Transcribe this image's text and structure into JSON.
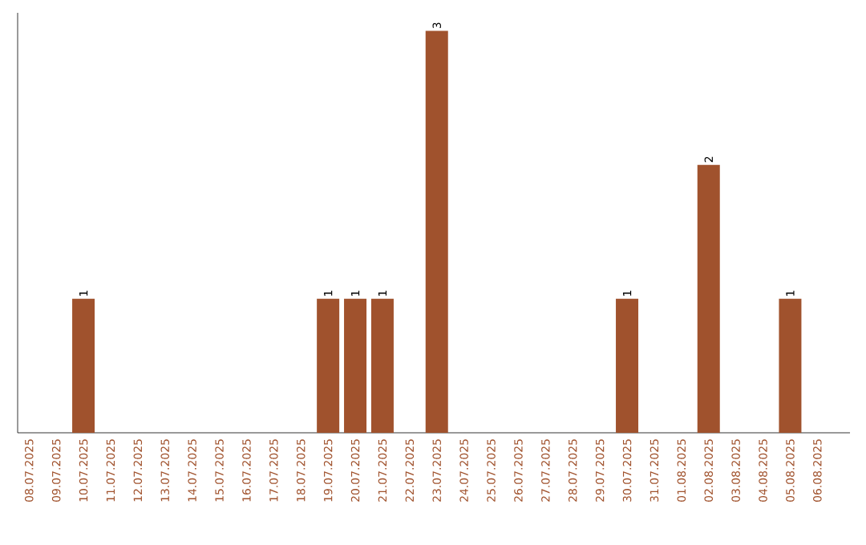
{
  "chart_data": {
    "type": "bar",
    "categories": [
      "08.07.2025",
      "09.07.2025",
      "10.07.2025",
      "11.07.2025",
      "12.07.2025",
      "13.07.2025",
      "14.07.2025",
      "15.07.2025",
      "16.07.2025",
      "17.07.2025",
      "18.07.2025",
      "19.07.2025",
      "20.07.2025",
      "21.07.2025",
      "22.07.2025",
      "23.07.2025",
      "24.07.2025",
      "25.07.2025",
      "26.07.2025",
      "27.07.2025",
      "28.07.2025",
      "29.07.2025",
      "30.07.2025",
      "31.07.2025",
      "01.08.2025",
      "02.08.2025",
      "03.08.2025",
      "04.08.2025",
      "05.08.2025",
      "06.08.2025"
    ],
    "values": [
      0,
      0,
      1,
      0,
      0,
      0,
      0,
      0,
      0,
      0,
      0,
      1,
      1,
      1,
      0,
      3,
      0,
      0,
      0,
      0,
      0,
      0,
      1,
      0,
      0,
      2,
      0,
      0,
      1,
      0
    ],
    "value_labels": [
      null,
      null,
      "1",
      null,
      null,
      null,
      null,
      null,
      null,
      null,
      null,
      "1",
      "1",
      "1",
      null,
      "3",
      null,
      null,
      null,
      null,
      null,
      null,
      "1",
      null,
      null,
      "2",
      null,
      null,
      "1",
      null
    ],
    "color": "#a0522d",
    "tick_labels": "x",
    "grid": false
  }
}
